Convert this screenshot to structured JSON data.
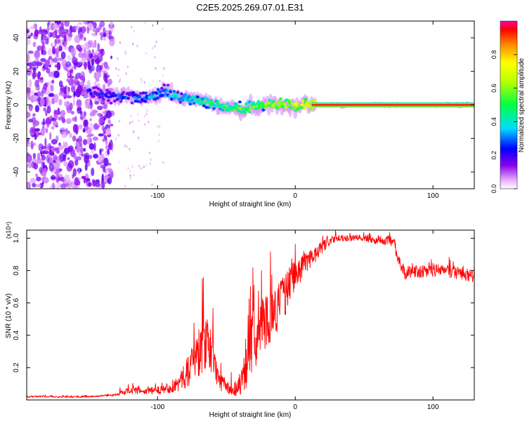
{
  "title": "C2E5.2025.269.07.01.E31",
  "chart_data": [
    {
      "type": "heatmap",
      "name": "spectrogram",
      "xlabel": "Height of straight line (km)",
      "ylabel": "Frequency (Hz)",
      "xlim": [
        -195,
        130
      ],
      "ylim": [
        -50,
        50
      ],
      "xticks": [
        -100,
        0,
        100
      ],
      "yticks": [
        -40,
        -20,
        0,
        20,
        40
      ],
      "colorbar": {
        "label": "Normalized spectral amplitude",
        "range": [
          0,
          1
        ],
        "ticks": [
          0.0,
          0.2,
          0.4,
          0.6,
          0.8
        ]
      },
      "noise_region_x": [
        -195,
        -133
      ],
      "sparse_region_x": [
        -133,
        -95
      ],
      "signal_center_freq": [
        {
          "x": -147,
          "y": 8
        },
        {
          "x": -135,
          "y": 5
        },
        {
          "x": -120,
          "y": 5
        },
        {
          "x": -105,
          "y": 4
        },
        {
          "x": -95,
          "y": 8
        },
        {
          "x": -85,
          "y": 5
        },
        {
          "x": -72,
          "y": 3
        },
        {
          "x": -60,
          "y": 1
        },
        {
          "x": -48,
          "y": -2
        },
        {
          "x": -38,
          "y": -3
        },
        {
          "x": -25,
          "y": 0
        },
        {
          "x": -10,
          "y": 0
        },
        {
          "x": 10,
          "y": 0
        },
        {
          "x": 130,
          "y": 0
        }
      ]
    },
    {
      "type": "line",
      "name": "snr",
      "xlabel": "Height of straight line (km)",
      "ylabel": "SNR (10 * v/v)",
      "y_multiplier": "(x10⁴)",
      "xlim": [
        -195,
        130
      ],
      "ylim": [
        0,
        1.05
      ],
      "xticks": [
        -100,
        0,
        100
      ],
      "yticks": [
        0.2,
        0.4,
        0.6,
        0.8,
        1.0
      ],
      "series": [
        {
          "name": "SNR",
          "color": "#ff0000",
          "x": [
            -195,
            -180,
            -165,
            -150,
            -140,
            -130,
            -125,
            -120,
            -110,
            -100,
            -95,
            -90,
            -85,
            -80,
            -75,
            -70,
            -66,
            -62,
            -58,
            -55,
            -50,
            -45,
            -40,
            -37,
            -34,
            -30,
            -28,
            -25,
            -20,
            -15,
            -10,
            -5,
            0,
            5,
            10,
            15,
            20,
            25,
            30,
            35,
            40,
            45,
            50,
            55,
            60,
            65,
            68,
            72,
            75,
            80,
            85,
            90,
            100,
            110,
            120,
            130
          ],
          "y": [
            0.02,
            0.02,
            0.02,
            0.02,
            0.025,
            0.03,
            0.05,
            0.06,
            0.05,
            0.06,
            0.07,
            0.08,
            0.1,
            0.15,
            0.22,
            0.3,
            0.35,
            0.32,
            0.2,
            0.12,
            0.08,
            0.06,
            0.1,
            0.2,
            0.3,
            0.38,
            0.4,
            0.45,
            0.5,
            0.55,
            0.6,
            0.7,
            0.78,
            0.82,
            0.87,
            0.9,
            0.95,
            0.98,
            1.0,
            1.0,
            1.0,
            1.0,
            1.0,
            0.99,
            0.98,
            0.98,
            0.99,
            0.96,
            0.85,
            0.78,
            0.8,
            0.79,
            0.8,
            0.8,
            0.78,
            0.76
          ],
          "noise_amplitude": [
            0.005,
            0.005,
            0.005,
            0.005,
            0.005,
            0.006,
            0.02,
            0.02,
            0.02,
            0.025,
            0.03,
            0.04,
            0.05,
            0.08,
            0.12,
            0.16,
            0.18,
            0.15,
            0.1,
            0.06,
            0.04,
            0.04,
            0.08,
            0.15,
            0.2,
            0.2,
            0.18,
            0.18,
            0.17,
            0.15,
            0.15,
            0.12,
            0.1,
            0.08,
            0.06,
            0.05,
            0.04,
            0.03,
            0.02,
            0.02,
            0.02,
            0.02,
            0.02,
            0.02,
            0.02,
            0.02,
            0.03,
            0.04,
            0.04,
            0.04,
            0.04,
            0.04,
            0.04,
            0.04,
            0.04,
            0.04
          ]
        }
      ]
    }
  ]
}
